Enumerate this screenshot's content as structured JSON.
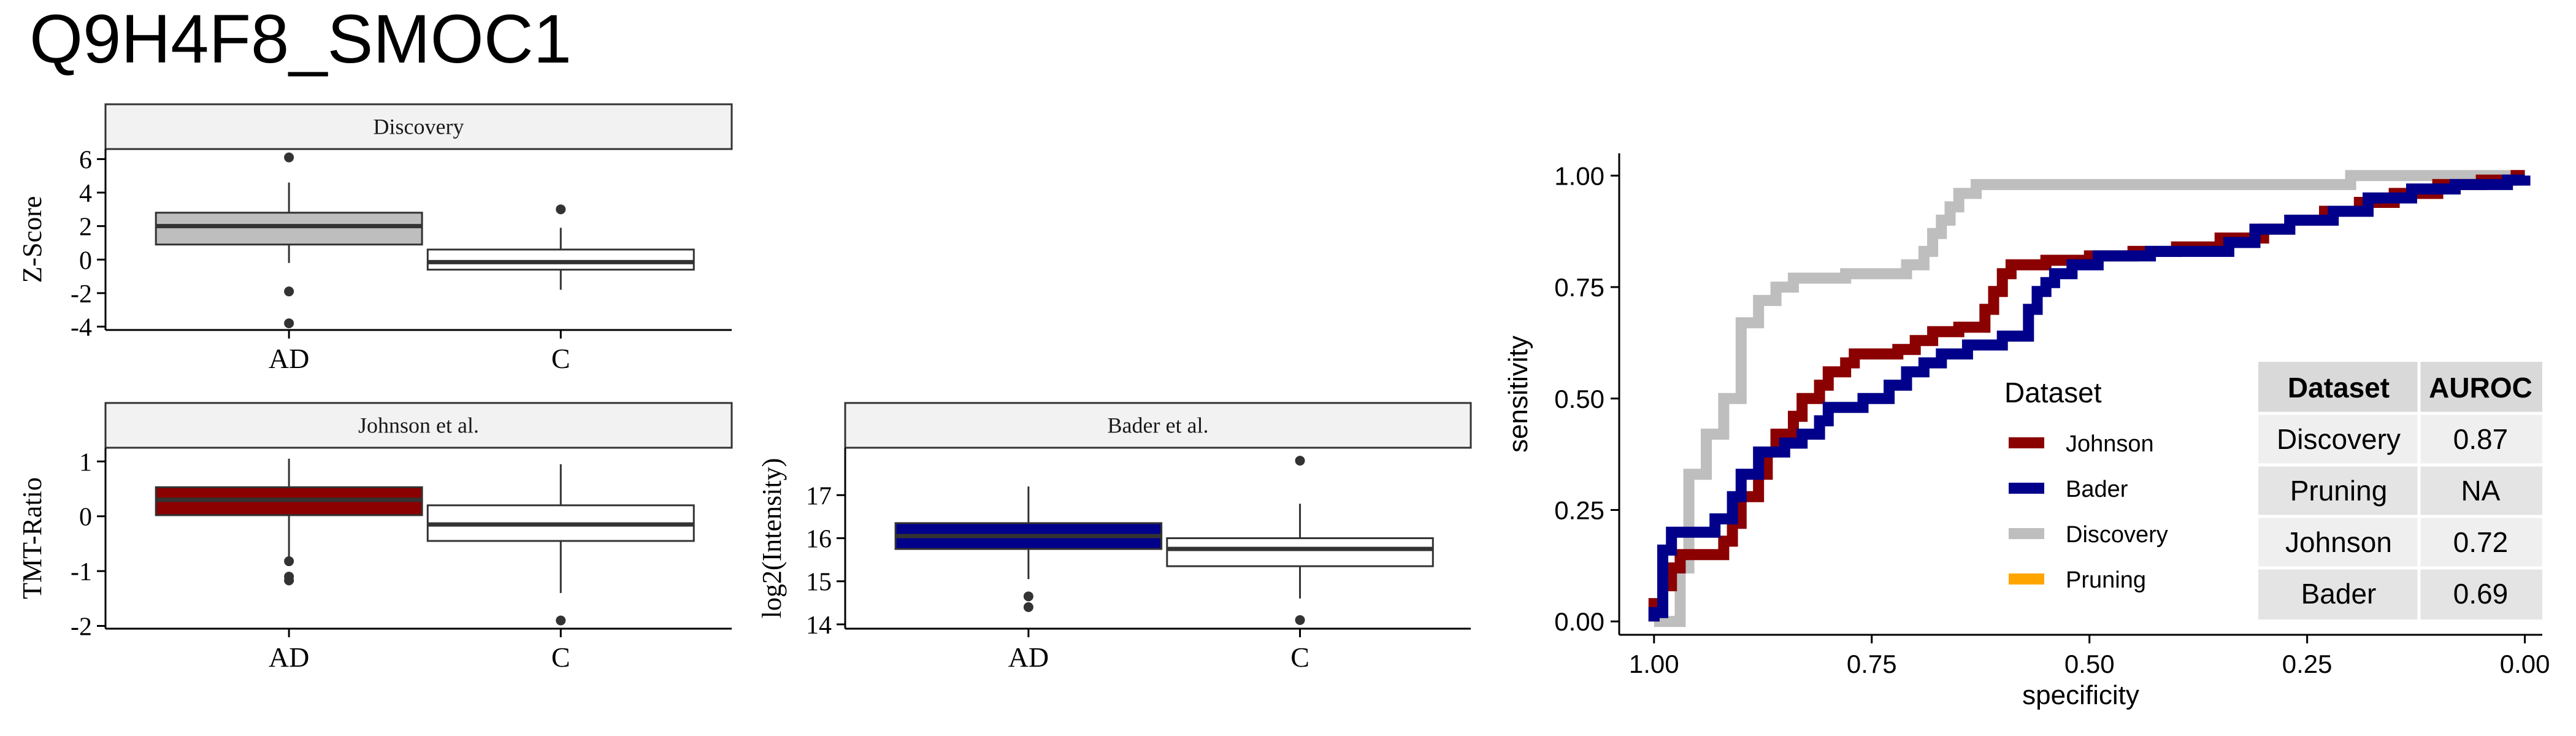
{
  "title": "Q9H4F8_SMOC1",
  "chart_data": [
    {
      "type": "box",
      "facet_label": "Discovery",
      "ylabel": "Z-Score",
      "xlabel": "",
      "categories": [
        "AD",
        "C"
      ],
      "ylim": [
        -4.2,
        6.6
      ],
      "yticks": [
        -4,
        -2,
        0,
        2,
        4,
        6
      ],
      "fill_colors": [
        "#BEBEBE",
        "#FFFFFF"
      ],
      "boxes": [
        {
          "q1": 0.9,
          "median": 2.0,
          "q3": 2.8,
          "whisker_low": -0.2,
          "whisker_high": 4.6,
          "outliers": [
            6.1,
            -1.9,
            -3.8
          ]
        },
        {
          "q1": -0.6,
          "median": -0.15,
          "q3": 0.6,
          "whisker_low": -1.8,
          "whisker_high": 1.9,
          "outliers": [
            3.0
          ]
        }
      ]
    },
    {
      "type": "box",
      "facet_label": "Johnson et al.",
      "ylabel": "TMT-Ratio",
      "xlabel": "",
      "categories": [
        "AD",
        "C"
      ],
      "ylim": [
        -2.05,
        1.25
      ],
      "yticks": [
        -2,
        -1,
        0,
        1
      ],
      "fill_colors": [
        "#8B0000",
        "#FFFFFF"
      ],
      "boxes": [
        {
          "q1": 0.02,
          "median": 0.3,
          "q3": 0.53,
          "whisker_low": -0.75,
          "whisker_high": 1.05,
          "outliers": [
            -0.82,
            -1.1,
            -1.17
          ]
        },
        {
          "q1": -0.45,
          "median": -0.15,
          "q3": 0.2,
          "whisker_low": -1.4,
          "whisker_high": 0.95,
          "outliers": [
            -1.9
          ]
        }
      ]
    },
    {
      "type": "box",
      "facet_label": "Bader et al.",
      "ylabel": "log2(Intensity)",
      "xlabel": "",
      "categories": [
        "AD",
        "C"
      ],
      "ylim": [
        13.9,
        18.1
      ],
      "yticks": [
        14,
        15,
        16,
        17
      ],
      "fill_colors": [
        "#00008B",
        "#FFFFFF"
      ],
      "boxes": [
        {
          "q1": 15.75,
          "median": 16.05,
          "q3": 16.35,
          "whisker_low": 15.05,
          "whisker_high": 17.2,
          "outliers": [
            14.65,
            14.4
          ]
        },
        {
          "q1": 15.35,
          "median": 15.75,
          "q3": 16.0,
          "whisker_low": 14.6,
          "whisker_high": 16.8,
          "outliers": [
            17.8,
            14.1
          ]
        }
      ]
    },
    {
      "type": "line",
      "xlabel": "specificity",
      "ylabel": "sensitivity",
      "xlim": [
        1.04,
        -0.02
      ],
      "ylim": [
        -0.03,
        1.05
      ],
      "xticks": [
        1.0,
        0.75,
        0.5,
        0.25,
        0.0
      ],
      "xtick_labels": [
        "1.00",
        "0.75",
        "0.50",
        "0.25",
        "0.00"
      ],
      "yticks": [
        0.0,
        0.25,
        0.5,
        0.75,
        1.0
      ],
      "ytick_labels": [
        "0.00",
        "0.25",
        "0.50",
        "0.75",
        "1.00"
      ],
      "legend": {
        "title": "Dataset",
        "position": "center-right",
        "items": [
          {
            "label": "Johnson",
            "color": "#8B0000"
          },
          {
            "label": "Bader",
            "color": "#00008B"
          },
          {
            "label": "Discovery",
            "color": "#BEBEBE"
          },
          {
            "label": "Pruning",
            "color": "#FFA500"
          }
        ]
      },
      "series": [
        {
          "name": "Discovery",
          "color": "#BEBEBE",
          "points": [
            [
              1.0,
              0.0
            ],
            [
              0.97,
              0.0
            ],
            [
              0.97,
              0.12
            ],
            [
              0.96,
              0.12
            ],
            [
              0.96,
              0.33
            ],
            [
              0.94,
              0.33
            ],
            [
              0.94,
              0.42
            ],
            [
              0.92,
              0.42
            ],
            [
              0.92,
              0.5
            ],
            [
              0.9,
              0.5
            ],
            [
              0.9,
              0.67
            ],
            [
              0.88,
              0.67
            ],
            [
              0.88,
              0.72
            ],
            [
              0.86,
              0.72
            ],
            [
              0.86,
              0.75
            ],
            [
              0.84,
              0.75
            ],
            [
              0.84,
              0.77
            ],
            [
              0.78,
              0.77
            ],
            [
              0.78,
              0.78
            ],
            [
              0.71,
              0.78
            ],
            [
              0.71,
              0.8
            ],
            [
              0.69,
              0.8
            ],
            [
              0.69,
              0.83
            ],
            [
              0.68,
              0.83
            ],
            [
              0.68,
              0.87
            ],
            [
              0.67,
              0.87
            ],
            [
              0.67,
              0.9
            ],
            [
              0.66,
              0.9
            ],
            [
              0.66,
              0.93
            ],
            [
              0.65,
              0.93
            ],
            [
              0.65,
              0.96
            ],
            [
              0.63,
              0.96
            ],
            [
              0.63,
              0.98
            ],
            [
              0.2,
              0.98
            ],
            [
              0.2,
              1.0
            ],
            [
              0.0,
              1.0
            ]
          ]
        },
        {
          "name": "Johnson",
          "color": "#8B0000",
          "points": [
            [
              1.0,
              0.0
            ],
            [
              1.0,
              0.04
            ],
            [
              0.99,
              0.04
            ],
            [
              0.99,
              0.08
            ],
            [
              0.98,
              0.08
            ],
            [
              0.98,
              0.12
            ],
            [
              0.97,
              0.12
            ],
            [
              0.97,
              0.15
            ],
            [
              0.92,
              0.15
            ],
            [
              0.92,
              0.18
            ],
            [
              0.91,
              0.18
            ],
            [
              0.91,
              0.22
            ],
            [
              0.9,
              0.22
            ],
            [
              0.9,
              0.28
            ],
            [
              0.88,
              0.28
            ],
            [
              0.88,
              0.33
            ],
            [
              0.87,
              0.33
            ],
            [
              0.87,
              0.38
            ],
            [
              0.86,
              0.38
            ],
            [
              0.86,
              0.42
            ],
            [
              0.84,
              0.42
            ],
            [
              0.84,
              0.46
            ],
            [
              0.83,
              0.46
            ],
            [
              0.83,
              0.5
            ],
            [
              0.81,
              0.5
            ],
            [
              0.81,
              0.53
            ],
            [
              0.8,
              0.53
            ],
            [
              0.8,
              0.56
            ],
            [
              0.78,
              0.56
            ],
            [
              0.78,
              0.58
            ],
            [
              0.77,
              0.58
            ],
            [
              0.77,
              0.6
            ],
            [
              0.72,
              0.6
            ],
            [
              0.72,
              0.61
            ],
            [
              0.7,
              0.61
            ],
            [
              0.7,
              0.63
            ],
            [
              0.68,
              0.63
            ],
            [
              0.68,
              0.65
            ],
            [
              0.65,
              0.65
            ],
            [
              0.65,
              0.66
            ],
            [
              0.62,
              0.66
            ],
            [
              0.62,
              0.7
            ],
            [
              0.61,
              0.7
            ],
            [
              0.61,
              0.74
            ],
            [
              0.6,
              0.74
            ],
            [
              0.6,
              0.78
            ],
            [
              0.59,
              0.78
            ],
            [
              0.59,
              0.8
            ],
            [
              0.55,
              0.8
            ],
            [
              0.55,
              0.81
            ],
            [
              0.5,
              0.81
            ],
            [
              0.5,
              0.82
            ],
            [
              0.45,
              0.82
            ],
            [
              0.45,
              0.83
            ],
            [
              0.4,
              0.83
            ],
            [
              0.4,
              0.84
            ],
            [
              0.35,
              0.84
            ],
            [
              0.35,
              0.86
            ],
            [
              0.3,
              0.86
            ],
            [
              0.3,
              0.88
            ],
            [
              0.27,
              0.88
            ],
            [
              0.27,
              0.9
            ],
            [
              0.23,
              0.9
            ],
            [
              0.23,
              0.92
            ],
            [
              0.19,
              0.92
            ],
            [
              0.19,
              0.94
            ],
            [
              0.15,
              0.94
            ],
            [
              0.15,
              0.96
            ],
            [
              0.1,
              0.96
            ],
            [
              0.1,
              0.98
            ],
            [
              0.05,
              0.98
            ],
            [
              0.05,
              0.99
            ],
            [
              0.01,
              0.99
            ],
            [
              0.01,
              1.0
            ],
            [
              0.0,
              1.0
            ]
          ]
        },
        {
          "name": "Bader",
          "color": "#00008B",
          "points": [
            [
              1.0,
              0.0
            ],
            [
              1.0,
              0.02
            ],
            [
              0.99,
              0.02
            ],
            [
              0.99,
              0.16
            ],
            [
              0.98,
              0.16
            ],
            [
              0.98,
              0.2
            ],
            [
              0.93,
              0.2
            ],
            [
              0.93,
              0.23
            ],
            [
              0.91,
              0.23
            ],
            [
              0.91,
              0.28
            ],
            [
              0.9,
              0.28
            ],
            [
              0.9,
              0.33
            ],
            [
              0.88,
              0.33
            ],
            [
              0.88,
              0.38
            ],
            [
              0.85,
              0.38
            ],
            [
              0.85,
              0.4
            ],
            [
              0.83,
              0.4
            ],
            [
              0.83,
              0.42
            ],
            [
              0.81,
              0.42
            ],
            [
              0.81,
              0.45
            ],
            [
              0.8,
              0.45
            ],
            [
              0.8,
              0.48
            ],
            [
              0.76,
              0.48
            ],
            [
              0.76,
              0.5
            ],
            [
              0.73,
              0.5
            ],
            [
              0.73,
              0.53
            ],
            [
              0.71,
              0.53
            ],
            [
              0.71,
              0.56
            ],
            [
              0.69,
              0.56
            ],
            [
              0.69,
              0.58
            ],
            [
              0.67,
              0.58
            ],
            [
              0.67,
              0.6
            ],
            [
              0.64,
              0.6
            ],
            [
              0.64,
              0.62
            ],
            [
              0.6,
              0.62
            ],
            [
              0.6,
              0.64
            ],
            [
              0.57,
              0.64
            ],
            [
              0.57,
              0.7
            ],
            [
              0.56,
              0.7
            ],
            [
              0.56,
              0.74
            ],
            [
              0.55,
              0.74
            ],
            [
              0.55,
              0.76
            ],
            [
              0.54,
              0.76
            ],
            [
              0.54,
              0.78
            ],
            [
              0.52,
              0.78
            ],
            [
              0.52,
              0.8
            ],
            [
              0.49,
              0.8
            ],
            [
              0.49,
              0.82
            ],
            [
              0.43,
              0.82
            ],
            [
              0.43,
              0.83
            ],
            [
              0.34,
              0.83
            ],
            [
              0.34,
              0.85
            ],
            [
              0.31,
              0.85
            ],
            [
              0.31,
              0.88
            ],
            [
              0.27,
              0.88
            ],
            [
              0.27,
              0.9
            ],
            [
              0.22,
              0.9
            ],
            [
              0.22,
              0.92
            ],
            [
              0.18,
              0.92
            ],
            [
              0.18,
              0.95
            ],
            [
              0.13,
              0.95
            ],
            [
              0.13,
              0.97
            ],
            [
              0.08,
              0.97
            ],
            [
              0.08,
              0.98
            ],
            [
              0.02,
              0.98
            ],
            [
              0.02,
              0.99
            ],
            [
              0.0,
              0.99
            ],
            [
              0.0,
              1.0
            ]
          ]
        },
        {
          "name": "Pruning",
          "color": "#FFA500",
          "points": []
        }
      ],
      "table": {
        "headers": [
          "Dataset",
          "AUROC"
        ],
        "rows": [
          [
            "Discovery",
            "0.87"
          ],
          [
            "Pruning",
            "NA"
          ],
          [
            "Johnson",
            "0.72"
          ],
          [
            "Bader",
            "0.69"
          ]
        ]
      }
    }
  ]
}
